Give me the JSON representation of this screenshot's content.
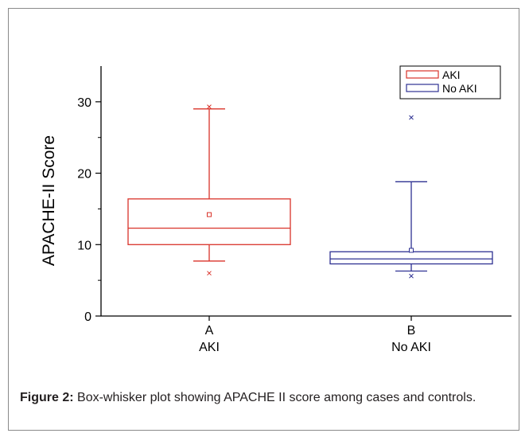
{
  "figure": {
    "caption_label": "Figure 2:",
    "caption_text": "Box-whisker plot showing APACHE II score among cases and controls."
  },
  "chart_data": {
    "type": "boxplot",
    "ylabel": "APACHE-II Score",
    "xlabel": "",
    "ylim": [
      0,
      35
    ],
    "yticks": [
      0,
      10,
      20,
      30
    ],
    "grid": false,
    "legend_position": "top-right",
    "legend": [
      "AKI",
      "No AKI"
    ],
    "categories": [
      {
        "tick": "A",
        "label": "AKI"
      },
      {
        "tick": "B",
        "label": "No AKI"
      }
    ],
    "series": [
      {
        "name": "AKI",
        "color": "#d9332a",
        "whisker_low": 7.7,
        "q1": 10.0,
        "median": 12.3,
        "q3": 16.4,
        "whisker_high": 29.0,
        "mean": 14.2,
        "outliers": [
          6.0,
          29.3
        ]
      },
      {
        "name": "No AKI",
        "color": "#2e3192",
        "whisker_low": 6.3,
        "q1": 7.3,
        "median": 8.0,
        "q3": 9.0,
        "whisker_high": 18.8,
        "mean": 9.2,
        "outliers": [
          5.6,
          27.8
        ]
      }
    ]
  }
}
